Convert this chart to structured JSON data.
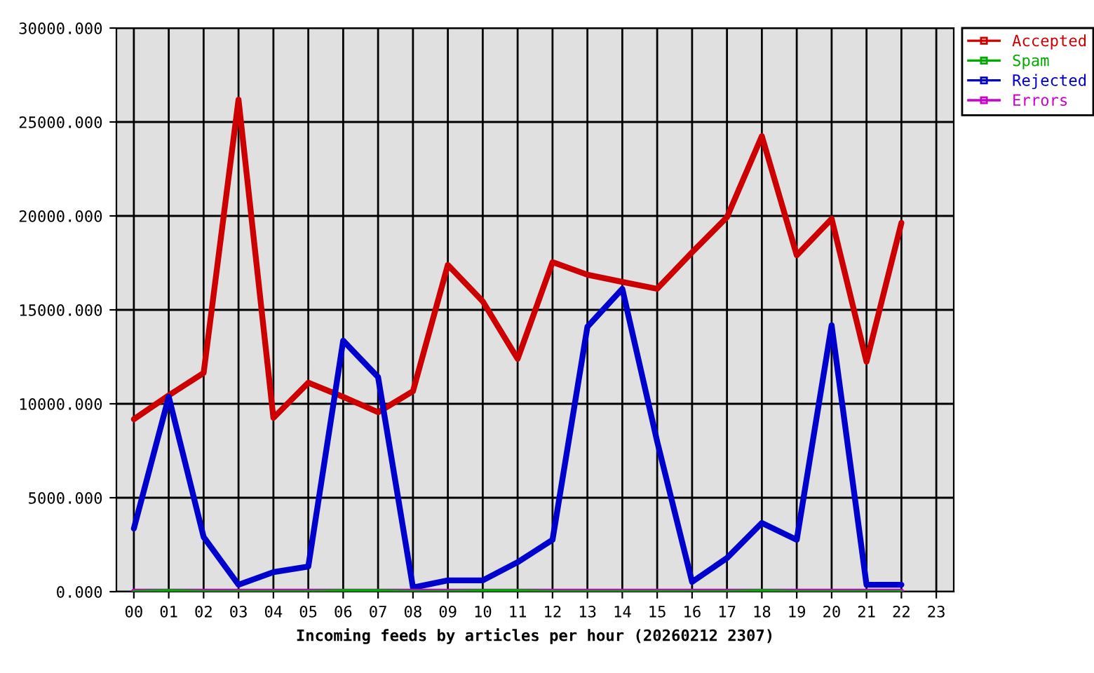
{
  "chart_data": {
    "type": "line",
    "xlabel": "Incoming feeds by articles per hour (20260212 2307)",
    "categories": [
      "00",
      "01",
      "02",
      "03",
      "04",
      "05",
      "06",
      "07",
      "08",
      "09",
      "10",
      "11",
      "12",
      "13",
      "14",
      "15",
      "16",
      "17",
      "18",
      "19",
      "20",
      "21",
      "22",
      "23"
    ],
    "series": [
      {
        "name": "Accepted",
        "color": "#cc0000",
        "values": [
          9180,
          10450,
          11640,
          26190,
          9250,
          11120,
          10370,
          9550,
          10670,
          17390,
          15450,
          12390,
          17540,
          16870,
          16490,
          16120,
          18060,
          19930,
          24250,
          17910,
          19850,
          12240,
          19630,
          null
        ]
      },
      {
        "name": "Spam",
        "color": "#00aa00",
        "values": [
          0,
          60,
          0,
          0,
          0,
          0,
          60,
          60,
          0,
          0,
          60,
          60,
          0,
          0,
          0,
          0,
          0,
          0,
          60,
          0,
          0,
          0,
          0,
          null
        ]
      },
      {
        "name": "Rejected",
        "color": "#0000cc",
        "values": [
          3360,
          10370,
          2910,
          370,
          1040,
          1340,
          13360,
          11420,
          220,
          600,
          600,
          1570,
          2760,
          14100,
          16120,
          7990,
          520,
          1790,
          3660,
          2760,
          14180,
          370,
          370,
          null
        ]
      },
      {
        "name": "Errors",
        "color": "#cc00cc",
        "values": [
          0,
          0,
          0,
          0,
          0,
          0,
          0,
          0,
          0,
          0,
          0,
          0,
          0,
          0,
          0,
          0,
          0,
          0,
          0,
          0,
          0,
          0,
          0,
          null
        ]
      }
    ],
    "ylim": [
      0,
      30000
    ],
    "yticks": [
      {
        "value": 0,
        "label": "0.000"
      },
      {
        "value": 5000,
        "label": "5000.000"
      },
      {
        "value": 10000,
        "label": "10000.000"
      },
      {
        "value": 15000,
        "label": "15000.000"
      },
      {
        "value": 20000,
        "label": "20000.000"
      },
      {
        "value": 25000,
        "label": "25000.000"
      },
      {
        "value": 30000,
        "label": "30000.000"
      }
    ],
    "grid": true,
    "legend": "top right"
  }
}
